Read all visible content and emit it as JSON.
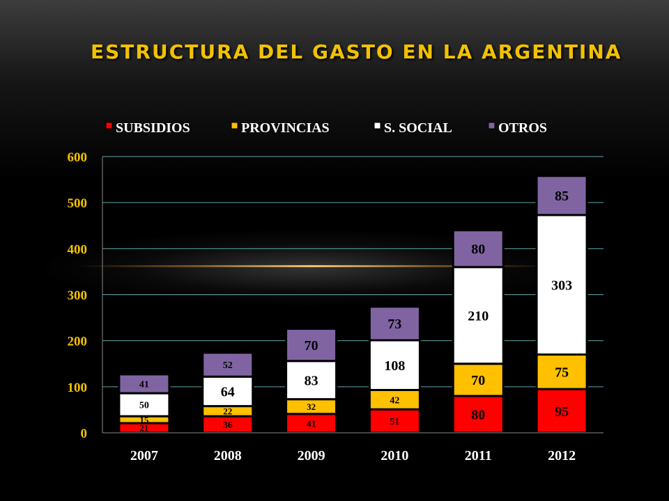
{
  "title": "ESTRUCTURA DEL GASTO EN LA ARGENTINA",
  "colors": {
    "background": "#000000",
    "title": "#f2c200",
    "axis_ticks": "#f2c200",
    "gridline": "#5fa8a8",
    "subsidios": "#ff0000",
    "provincias": "#ffc000",
    "social": "#ffffff",
    "otros": "#8064a2"
  },
  "chart_data": {
    "type": "bar",
    "stacked": true,
    "title": "ESTRUCTURA DEL GASTO EN LA ARGENTINA",
    "xlabel": "",
    "ylabel": "",
    "categories": [
      "2007",
      "2008",
      "2009",
      "2010",
      "2011",
      "2012"
    ],
    "series": [
      {
        "name": "SUBSIDIOS",
        "color": "#ff0000",
        "values": [
          21,
          36,
          41,
          51,
          80,
          95
        ]
      },
      {
        "name": "PROVINCIAS",
        "color": "#ffc000",
        "values": [
          15,
          22,
          32,
          42,
          70,
          75
        ]
      },
      {
        "name": "S. SOCIAL",
        "color": "#ffffff",
        "values": [
          50,
          64,
          83,
          108,
          210,
          303
        ]
      },
      {
        "name": "OTROS",
        "color": "#8064a2",
        "values": [
          41,
          52,
          70,
          73,
          80,
          85
        ]
      }
    ],
    "ylim": [
      0,
      600
    ],
    "yticks": [
      0,
      100,
      200,
      300,
      400,
      500,
      600
    ],
    "grid": true,
    "legend": "top",
    "data_labels": true
  }
}
